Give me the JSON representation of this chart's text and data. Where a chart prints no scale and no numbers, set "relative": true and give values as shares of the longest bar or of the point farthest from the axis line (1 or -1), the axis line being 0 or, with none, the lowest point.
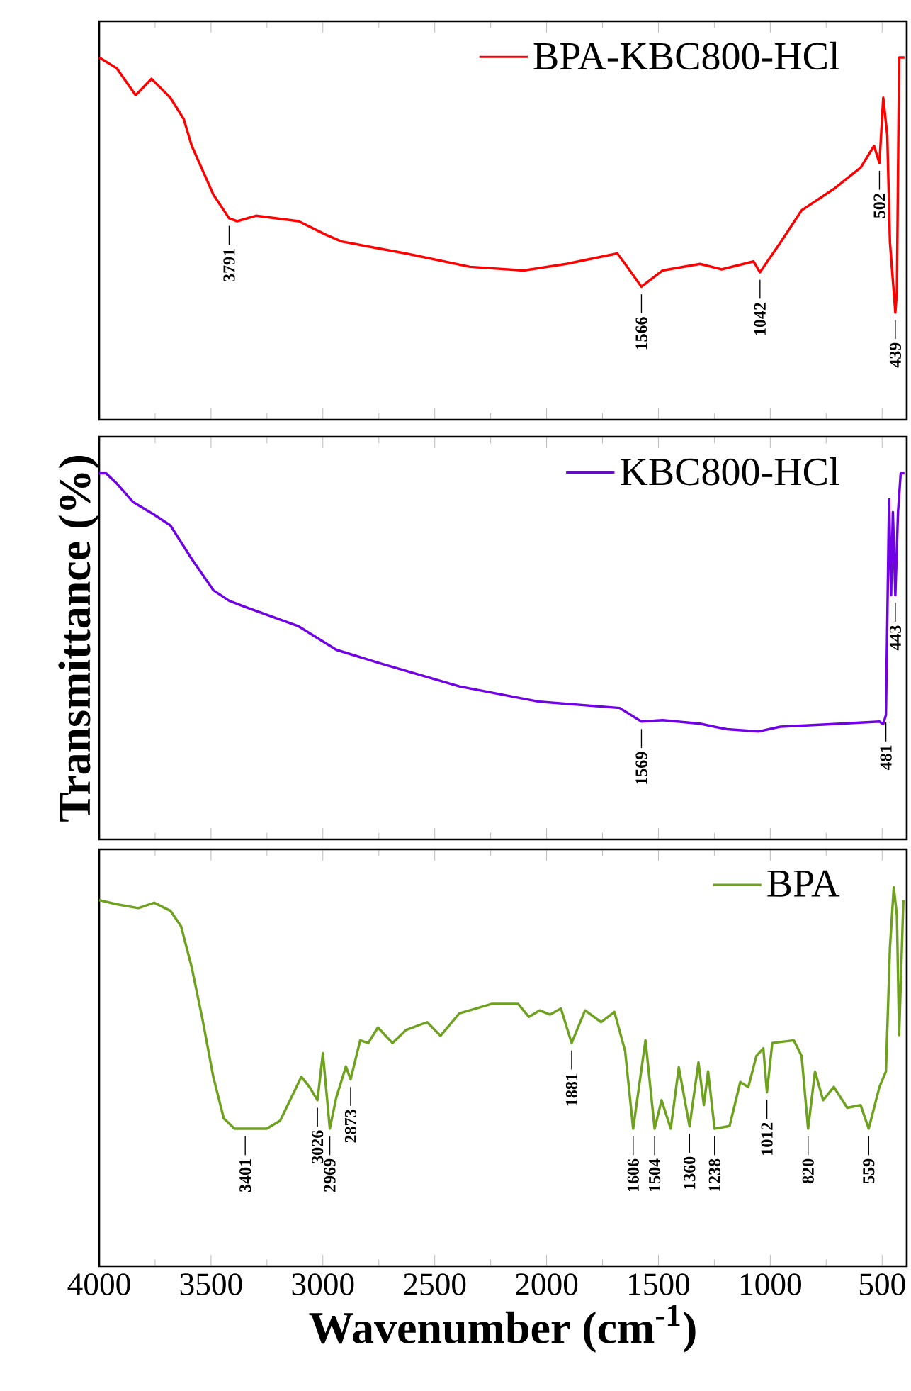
{
  "chart_data": [
    {
      "type": "line",
      "relative": true,
      "xlim": [
        4000,
        390
      ],
      "xticks": [
        4000,
        3500,
        3000,
        2500,
        2000,
        1500,
        1000,
        500
      ],
      "tick_labels": false,
      "legend": "top right",
      "series": [
        {
          "name": "BPA-KBC800-HCl",
          "color": "#ff0000",
          "x": [
            4000,
            3921,
            3837,
            3766,
            3682,
            3622,
            3586,
            3490,
            3419,
            3383,
            3299,
            3108,
            2988,
            2916,
            2629,
            2342,
            2103,
            1912,
            1684,
            1649,
            1576,
            1481,
            1314,
            1218,
            1075,
            1046,
            955,
            860,
            716,
            596,
            536,
            512,
            495,
            477,
            465,
            441,
            434,
            424,
            400
          ],
          "values": [
            1.0,
            0.97,
            0.896,
            0.941,
            0.889,
            0.83,
            0.756,
            0.622,
            0.556,
            0.548,
            0.563,
            0.548,
            0.511,
            0.492,
            0.459,
            0.422,
            0.412,
            0.43,
            0.459,
            0.43,
            0.367,
            0.412,
            0.43,
            0.415,
            0.437,
            0.407,
            0.489,
            0.578,
            0.637,
            0.696,
            0.756,
            0.708,
            0.889,
            0.785,
            0.489,
            0.296,
            0.356,
            1.0,
            1.0
          ]
        }
      ],
      "annotations": [
        {
          "text": "3791",
          "x": 3419,
          "y": 0.556
        },
        {
          "text": "1566",
          "x": 1576,
          "y": 0.367
        },
        {
          "text": "1042",
          "x": 1046,
          "y": 0.407
        },
        {
          "text": "502",
          "x": 512,
          "y": 0.708
        },
        {
          "text": "439",
          "x": 441,
          "y": 0.296
        }
      ]
    },
    {
      "type": "line",
      "relative": true,
      "xlim": [
        4000,
        390
      ],
      "xticks": [
        4000,
        3500,
        3000,
        2500,
        2000,
        1500,
        1000,
        500
      ],
      "tick_labels": false,
      "legend": "top right",
      "ylabel": "Transmittance (%)",
      "series": [
        {
          "name": "KBC800-HCl",
          "color": "#7000e6",
          "x": [
            4000,
            3969,
            3921,
            3849,
            3754,
            3682,
            3586,
            3490,
            3419,
            3347,
            3108,
            2940,
            2749,
            2390,
            2031,
            1673,
            1576,
            1481,
            1314,
            1194,
            1051,
            955,
            716,
            512,
            495,
            483,
            469,
            460,
            452,
            441,
            429,
            417,
            400
          ],
          "values": [
            1.0,
            1.0,
            0.972,
            0.922,
            0.887,
            0.858,
            0.766,
            0.681,
            0.652,
            0.635,
            0.582,
            0.518,
            0.482,
            0.418,
            0.376,
            0.359,
            0.322,
            0.326,
            0.316,
            0.301,
            0.295,
            0.308,
            0.315,
            0.322,
            0.315,
            0.34,
            0.929,
            0.667,
            0.894,
            0.667,
            0.894,
            1.0,
            1.0
          ]
        }
      ],
      "annotations": [
        {
          "text": "1569",
          "x": 1576,
          "y": 0.322
        },
        {
          "text": "481",
          "x": 483,
          "y": 0.34
        },
        {
          "text": "443",
          "x": 441,
          "y": 0.667
        }
      ]
    },
    {
      "type": "line",
      "relative": true,
      "xlim": [
        4000,
        390
      ],
      "xticks": [
        4000,
        3500,
        3000,
        2500,
        2000,
        1500,
        1000,
        500
      ],
      "tick_labels": "x",
      "legend": "top right",
      "xlabel": "Wavenumber (cm$^{-1}$)",
      "series": [
        {
          "name": "BPA",
          "color": "#6ea21e",
          "x": [
            4000,
            3921,
            3825,
            3754,
            3682,
            3634,
            3586,
            3538,
            3490,
            3443,
            3395,
            3251,
            3191,
            3096,
            3060,
            3024,
            3000,
            2969,
            2940,
            2897,
            2876,
            2833,
            2797,
            2754,
            2689,
            2629,
            2534,
            2474,
            2390,
            2247,
            2127,
            2079,
            2031,
            1984,
            1936,
            1888,
            1828,
            1756,
            1697,
            1649,
            1613,
            1558,
            1517,
            1486,
            1445,
            1409,
            1361,
            1321,
            1297,
            1278,
            1249,
            1182,
            1134,
            1098,
            1062,
            1031,
            1015,
            991,
            895,
            860,
            831,
            800,
            764,
            716,
            656,
            596,
            560,
            512,
            483,
            465,
            448,
            434,
            424,
            405
          ],
          "values": [
            0.966,
            0.955,
            0.945,
            0.959,
            0.938,
            0.897,
            0.788,
            0.651,
            0.5,
            0.39,
            0.363,
            0.363,
            0.384,
            0.5,
            0.473,
            0.438,
            0.562,
            0.363,
            0.445,
            0.527,
            0.493,
            0.596,
            0.589,
            0.63,
            0.589,
            0.623,
            0.644,
            0.608,
            0.667,
            0.692,
            0.692,
            0.658,
            0.675,
            0.664,
            0.68,
            0.589,
            0.675,
            0.644,
            0.671,
            0.568,
            0.363,
            0.596,
            0.363,
            0.438,
            0.363,
            0.525,
            0.369,
            0.538,
            0.425,
            0.514,
            0.363,
            0.37,
            0.486,
            0.473,
            0.555,
            0.575,
            0.459,
            0.589,
            0.596,
            0.555,
            0.363,
            0.514,
            0.438,
            0.473,
            0.418,
            0.425,
            0.363,
            0.473,
            0.514,
            0.842,
            1.0,
            0.925,
            0.61,
            0.966
          ]
        }
      ],
      "annotations": [
        {
          "text": "3401",
          "x": 3347,
          "y": 0.363
        },
        {
          "text": "3026",
          "x": 3024,
          "y": 0.438
        },
        {
          "text": "2969",
          "x": 2969,
          "y": 0.363
        },
        {
          "text": "2873",
          "x": 2876,
          "y": 0.493
        },
        {
          "text": "1881",
          "x": 1888,
          "y": 0.589
        },
        {
          "text": "1606",
          "x": 1613,
          "y": 0.363
        },
        {
          "text": "1504",
          "x": 1517,
          "y": 0.363
        },
        {
          "text": "1360",
          "x": 1361,
          "y": 0.369
        },
        {
          "text": "1238",
          "x": 1249,
          "y": 0.363
        },
        {
          "text": "1012",
          "x": 1015,
          "y": 0.459
        },
        {
          "text": "820",
          "x": 831,
          "y": 0.363
        },
        {
          "text": "559",
          "x": 560,
          "y": 0.363
        }
      ]
    }
  ]
}
